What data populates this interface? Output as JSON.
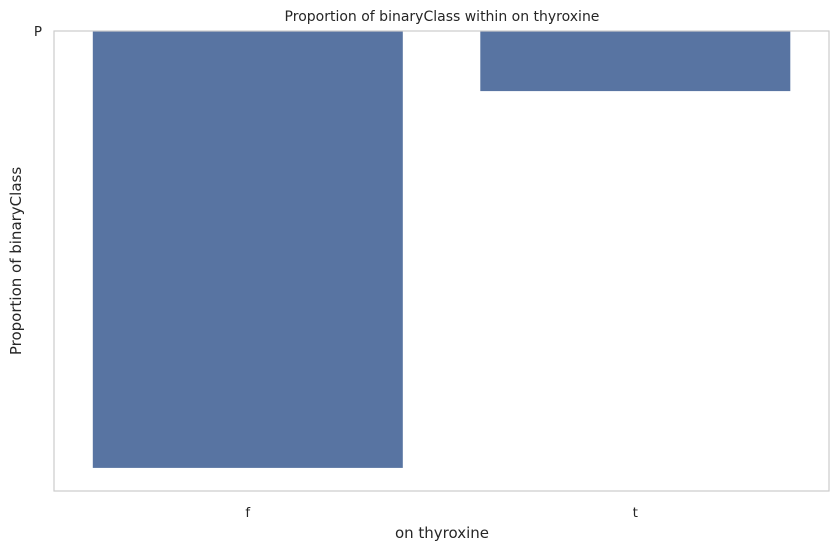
{
  "chart_data": {
    "type": "bar",
    "title": "Proportion of binaryClass within on thyroxine",
    "xlabel": "on thyroxine",
    "ylabel": "Proportion of binaryClass",
    "categories": [
      "f",
      "t"
    ],
    "y_tick_labels": [
      "P"
    ],
    "series": [
      {
        "values": [
          0.879,
          0.121
        ]
      }
    ],
    "bar_direction": "down",
    "grid": false,
    "colors": {
      "bar": "#5874a2",
      "frame": "#cccccc",
      "background": "#ffffff"
    }
  }
}
